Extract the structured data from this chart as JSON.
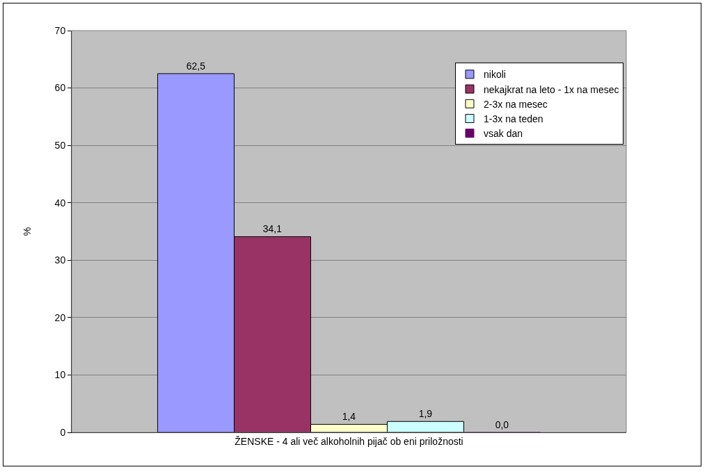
{
  "chart_data": {
    "type": "bar",
    "categories": [
      "ŽENSKE - 4 ali več alkoholnih pijač ob eni priložnosti"
    ],
    "ylabel": "%",
    "series": [
      {
        "name": "nikoli",
        "color": "#9999ff",
        "values": [
          62.5
        ],
        "value_labels": [
          "62,5"
        ]
      },
      {
        "name": "nekajkrat na leto - 1x na mesec",
        "color": "#993366",
        "values": [
          34.1
        ],
        "value_labels": [
          "34,1"
        ]
      },
      {
        "name": "2-3x na mesec",
        "color": "#ffffcc",
        "values": [
          1.4
        ],
        "value_labels": [
          "1,4"
        ]
      },
      {
        "name": "1-3x na teden",
        "color": "#ccffff",
        "values": [
          1.9
        ],
        "value_labels": [
          "1,9"
        ]
      },
      {
        "name": "vsak dan",
        "color": "#660066",
        "values": [
          0.0
        ],
        "value_labels": [
          "0,0"
        ]
      }
    ],
    "ylim": [
      0,
      70
    ],
    "yticks": [
      0,
      10,
      20,
      30,
      40,
      50,
      60,
      70
    ],
    "grid": "y",
    "legend": "top right"
  }
}
